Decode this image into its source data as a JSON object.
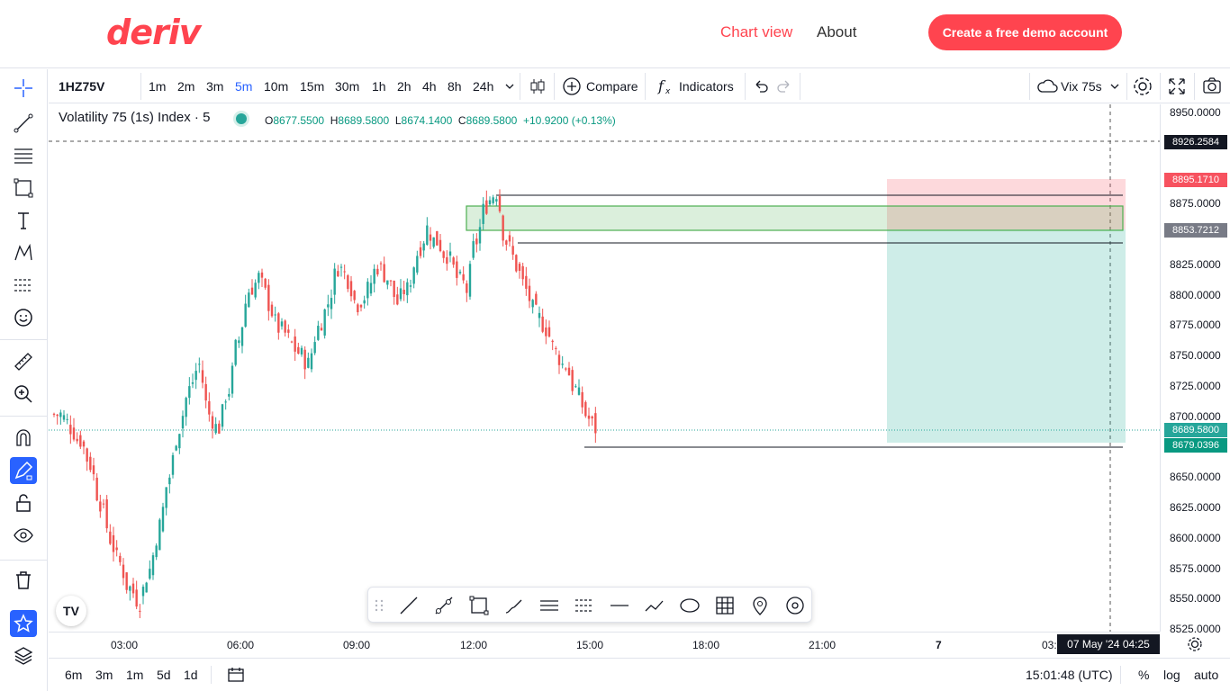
{
  "nav": {
    "logo": "deriv",
    "chart_view": "Chart view",
    "about": "About",
    "cta": "Create a free demo account"
  },
  "toolbar": {
    "symbol": "1HZ75V",
    "intervals": [
      "1m",
      "2m",
      "3m",
      "5m",
      "10m",
      "15m",
      "30m",
      "1h",
      "2h",
      "4h",
      "8h",
      "24h"
    ],
    "active_interval": "5m",
    "compare": "Compare",
    "indicators": "Indicators",
    "symbol_select": "Vix 75s"
  },
  "legend": {
    "title": "Volatility 75 (1s) Index · 5",
    "o_label": "O",
    "o": "8677.5500",
    "h_label": "H",
    "h": "8689.5800",
    "l_label": "L",
    "l": "8674.1400",
    "c_label": "C",
    "c": "8689.5800",
    "change": "+10.9200 (+0.13%)"
  },
  "price_axis": {
    "labels": [
      "8950.0000",
      "8875.0000",
      "8825.0000",
      "8800.0000",
      "8775.0000",
      "8750.0000",
      "8725.0000",
      "8700.0000",
      "8650.0000",
      "8625.0000",
      "8600.0000",
      "8575.0000",
      "8550.0000",
      "8525.0000"
    ],
    "crosshair_tag": "8926.2584",
    "stop_tag": "8895.1710",
    "entry_tag": "8853.7212",
    "last_tag": "8689.5800",
    "target_tag": "8679.0396"
  },
  "time_axis": {
    "labels": [
      "03:00",
      "06:00",
      "09:00",
      "12:00",
      "15:00",
      "18:00",
      "21:00",
      "7",
      "03:"
    ],
    "crosshair": "07 May '24   04:25"
  },
  "bottom": {
    "ranges": [
      "6m",
      "3m",
      "1m",
      "5d",
      "1d"
    ],
    "clock": "15:01:48 (UTC)",
    "percent": "%",
    "log": "log",
    "auto": "auto"
  },
  "tv_logo": "TV",
  "colors": {
    "up": "#26a69a",
    "down": "#ef5350",
    "brand": "#ff444f",
    "active": "#2962ff"
  },
  "chart_data": {
    "type": "candlestick",
    "ylim": [
      8525,
      8950
    ],
    "series": [
      {
        "name": "1HZ75V",
        "close": [
          8700,
          8690,
          8680,
          8660,
          8630,
          8600,
          8580,
          8560,
          8550,
          8575,
          8610,
          8650,
          8690,
          8720,
          8740,
          8700,
          8690,
          8720,
          8760,
          8800,
          8810,
          8790,
          8770,
          8760,
          8750,
          8740,
          8770,
          8790,
          8820,
          8810,
          8790,
          8800,
          8820,
          8810,
          8790,
          8800,
          8830,
          8850,
          8840,
          8830,
          8810,
          8800,
          8840,
          8870,
          8880,
          8840,
          8820,
          8800,
          8780,
          8770,
          8750,
          8740,
          8720,
          8700,
          8689
        ]
      }
    ]
  }
}
